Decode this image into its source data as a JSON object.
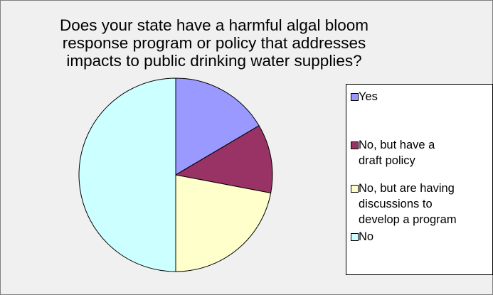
{
  "chart_data": {
    "type": "pie",
    "title_lines": [
      "Does your state have a harmful algal bloom",
      "response program or policy that addresses",
      "impacts to public drinking water supplies?"
    ],
    "categories": [
      "Yes",
      "No, but have a draft policy",
      "No, but are having discussions to develop a program",
      "No"
    ],
    "legend_lines": [
      [
        "Yes"
      ],
      [
        "No, but have a",
        "draft policy"
      ],
      [
        "No, but are having",
        "discussions to",
        "develop a program"
      ],
      [
        "No"
      ]
    ],
    "values": [
      16.5,
      11.5,
      22,
      50
    ],
    "colors": [
      "#9999ff",
      "#993366",
      "#ffffcc",
      "#ccffff"
    ],
    "legend_position": "right"
  }
}
